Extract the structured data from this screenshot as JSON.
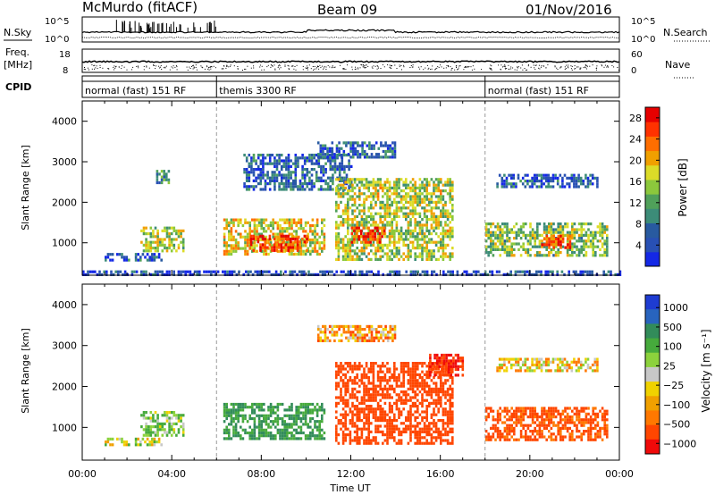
{
  "header": {
    "title": "McMurdo (fitACF)",
    "beam": "Beam 09",
    "date": "01/Nov/2016"
  },
  "params": {
    "nsky_label": "N.Sky",
    "nsearch_label": "N.Search",
    "freq_label_1": "Freq.",
    "freq_label_2": "[MHz]",
    "nave_label": "Nave",
    "cpid_label": "CPID",
    "noise_ticks": [
      "10^5",
      "10^0"
    ],
    "freq_ticks": [
      "18",
      "8"
    ],
    "nave_ticks": [
      "60",
      "0"
    ]
  },
  "cpid_segments": [
    {
      "label": "normal (fast) 151 RF",
      "start_hour": 0,
      "end_hour": 6
    },
    {
      "label": "themis 3300 RF",
      "start_hour": 6,
      "end_hour": 18
    },
    {
      "label": "normal (fast) 151 RF",
      "start_hour": 18,
      "end_hour": 24
    }
  ],
  "colors": {
    "power_scale": [
      "#1428e6",
      "#2850b4",
      "#285aa0",
      "#3c8c78",
      "#50a05a",
      "#8cc83c",
      "#dcdc28",
      "#f0a000",
      "#ff6e00",
      "#ff3200",
      "#e60000"
    ],
    "velocity_scale": [
      "#1e3cd2",
      "#2864be",
      "#328c5a",
      "#46aa3c",
      "#8cd23c",
      "#c8c8c8",
      "#f0d200",
      "#f0a000",
      "#ff7800",
      "#ff4600",
      "#f00a0a"
    ]
  },
  "chart_data": [
    {
      "type": "heatmap",
      "name": "power",
      "xlabel": "Time UT",
      "ylabel": "Slant Range [km]",
      "xlim": [
        0,
        24
      ],
      "ylim": [
        200,
        4500
      ],
      "x_ticks": [
        "00:00",
        "04:00",
        "08:00",
        "12:00",
        "16:00",
        "20:00",
        "00:00"
      ],
      "y_ticks": [
        1000,
        2000,
        3000,
        4000
      ],
      "colorbar": {
        "label": "Power [dB]",
        "ticks": [
          4,
          8,
          12,
          16,
          20,
          24,
          28
        ],
        "range": [
          0,
          30
        ]
      },
      "regions": [
        {
          "t0": 2.6,
          "t1": 4.5,
          "r0": 800,
          "r1": 1400,
          "value": 16
        },
        {
          "t0": 1.0,
          "t1": 3.5,
          "r0": 600,
          "r1": 750,
          "value": 6
        },
        {
          "t0": 3.3,
          "t1": 3.9,
          "r0": 2500,
          "r1": 2800,
          "value": 10
        },
        {
          "t0": 6.3,
          "t1": 10.8,
          "r0": 700,
          "r1": 1600,
          "value": 18
        },
        {
          "t0": 7.5,
          "t1": 10.0,
          "r0": 800,
          "r1": 1200,
          "value": 26
        },
        {
          "t0": 7.2,
          "t1": 12.0,
          "r0": 2300,
          "r1": 3200,
          "value": 6
        },
        {
          "t0": 11.3,
          "t1": 16.5,
          "r0": 600,
          "r1": 2600,
          "value": 16
        },
        {
          "t0": 12.0,
          "t1": 13.5,
          "r0": 1000,
          "r1": 1400,
          "value": 26
        },
        {
          "t0": 10.5,
          "t1": 14.0,
          "r0": 3100,
          "r1": 3500,
          "value": 6
        },
        {
          "t0": 18.0,
          "t1": 23.5,
          "r0": 700,
          "r1": 1500,
          "value": 14
        },
        {
          "t0": 20.5,
          "t1": 21.8,
          "r0": 850,
          "r1": 1200,
          "value": 26
        },
        {
          "t0": 18.5,
          "t1": 23.0,
          "r0": 2400,
          "r1": 2700,
          "value": 6
        },
        {
          "t0": 0.0,
          "t1": 24.0,
          "r0": 220,
          "r1": 320,
          "value": 4
        }
      ]
    },
    {
      "type": "heatmap",
      "name": "velocity",
      "xlabel": "Time UT",
      "ylabel": "Slant Range [km]",
      "xlim": [
        0,
        24
      ],
      "ylim": [
        200,
        4500
      ],
      "x_ticks": [
        "00:00",
        "04:00",
        "08:00",
        "12:00",
        "16:00",
        "20:00",
        "00:00"
      ],
      "y_ticks": [
        1000,
        2000,
        3000,
        4000
      ],
      "colorbar": {
        "label": "Velocity [m s⁻¹]",
        "ticks": [
          "1000",
          "500",
          "100",
          "25",
          "−25",
          "−100",
          "−500",
          "−1000"
        ]
      },
      "regions": [
        {
          "t0": 2.6,
          "t1": 4.5,
          "r0": 800,
          "r1": 1400,
          "value": 100
        },
        {
          "t0": 1.0,
          "t1": 3.5,
          "r0": 600,
          "r1": 750,
          "value": 50
        },
        {
          "t0": 6.3,
          "t1": 10.8,
          "r0": 700,
          "r1": 1600,
          "value": 300
        },
        {
          "t0": 11.3,
          "t1": 16.5,
          "r0": 600,
          "r1": 2600,
          "value": -200
        },
        {
          "t0": 15.5,
          "t1": 17.0,
          "r0": 2300,
          "r1": 2800,
          "value": -300
        },
        {
          "t0": 18.0,
          "t1": 23.5,
          "r0": 700,
          "r1": 1500,
          "value": -150
        },
        {
          "t0": 18.5,
          "t1": 23.0,
          "r0": 2400,
          "r1": 2700,
          "value": 0
        },
        {
          "t0": 10.5,
          "t1": 14.0,
          "r0": 3100,
          "r1": 3500,
          "value": -50
        }
      ]
    }
  ]
}
